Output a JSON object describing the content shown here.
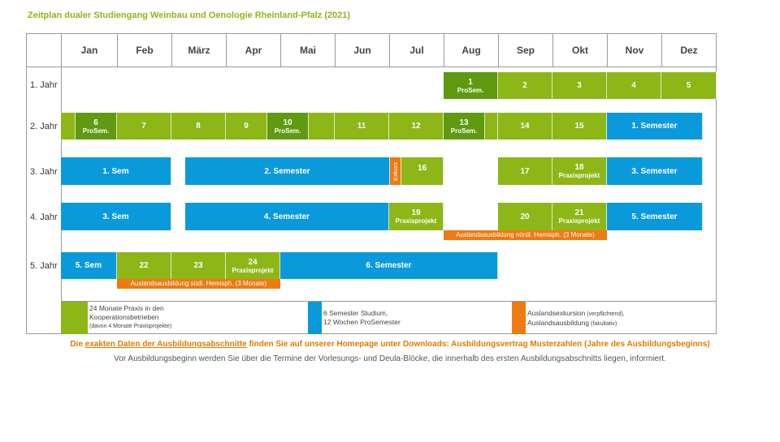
{
  "title": "Zeitplan dualer Studiengang Weinbau und Oenologie Rheinland-Pfalz (2021)",
  "months": [
    "Jan",
    "Feb",
    "März",
    "Apr",
    "Mai",
    "Jun",
    "Jul",
    "Aug",
    "Sep",
    "Okt",
    "Nov",
    "Dez"
  ],
  "years": [
    "1. Jahr",
    "2. Jahr",
    "3. Jahr",
    "4. Jahr",
    "5. Jahr"
  ],
  "colors": {
    "praxis": "#8DB617",
    "prosem": "#5F9A10",
    "studium": "#0A9ADB",
    "ausland": "#EE7A12"
  },
  "blocks": {
    "y1_1": "1",
    "y1_1_sub": "ProSem.",
    "y1_2": "2",
    "y1_3": "3",
    "y1_4": "4",
    "y1_5": "5",
    "y2_6": "6",
    "y2_6_sub": "ProSem.",
    "y2_7": "7",
    "y2_8": "8",
    "y2_9": "9",
    "y2_10": "10",
    "y2_10_sub": "ProSem.",
    "y2_11": "11",
    "y2_12": "12",
    "y2_13": "13",
    "y2_13_sub": "ProSem.",
    "y2_14": "14",
    "y2_15": "15",
    "y2_sem1": "1. Semester",
    "y3_sem1": "1. Sem",
    "y3_sem2": "2. Semester",
    "y3_exkurs": "Exkurs",
    "y3_16": "16",
    "y3_17": "17",
    "y3_18": "18",
    "y3_18_sub": "Praxisprojekt",
    "y3_sem3": "3. Semester",
    "y4_sem3": "3. Sem",
    "y4_sem4": "4. Semester",
    "y4_19": "19",
    "y4_19_sub": "Praxisprojekt",
    "y4_20": "20",
    "y4_21": "21",
    "y4_21_sub": "Praxisprojekt",
    "y4_sem5": "5. Semester",
    "y4_ausland": "Auslandsausbildung nördl. Hemisph. (3 Monate)",
    "y5_sem5": "5. Sem",
    "y5_22": "22",
    "y5_23": "23",
    "y5_24": "24",
    "y5_24_sub": "Praxisprojekt",
    "y5_sem6": "6. Semester",
    "y5_ausland": "Auslandsausbildung südl. Hemisph. (3 Monate)"
  },
  "legend": {
    "praxis_l1": "24 Monate Praxis in den",
    "praxis_l2": "Kooperationsbetrieben",
    "praxis_l3": "(davon 4 Monate Praxisprojekte)",
    "studium_l1": "6 Semester Studium,",
    "studium_l2": "12 Wochen ProSemester",
    "ausland_l1a": "Auslandsexkursion",
    "ausland_l1b": " (verpflichtend),",
    "ausland_l2a": "Auslandsausbildung",
    "ausland_l2b": " (fakultativ)"
  },
  "note1": {
    "pre": "Die ",
    "link": "exakten Daten der Ausbildungsabschnitte",
    "post": " finden Sie auf unserer Homepage unter Downloads: Ausbildungsvertrag Musterzahlen (Jahre des Ausbildungsbeginns)"
  },
  "note2": "Vor Ausbildungsbeginn werden Sie über die Termine der Vorlesungs- und Deula-Blöcke, die innerhalb des ersten Ausbildungsabschnitts liegen, informiert."
}
